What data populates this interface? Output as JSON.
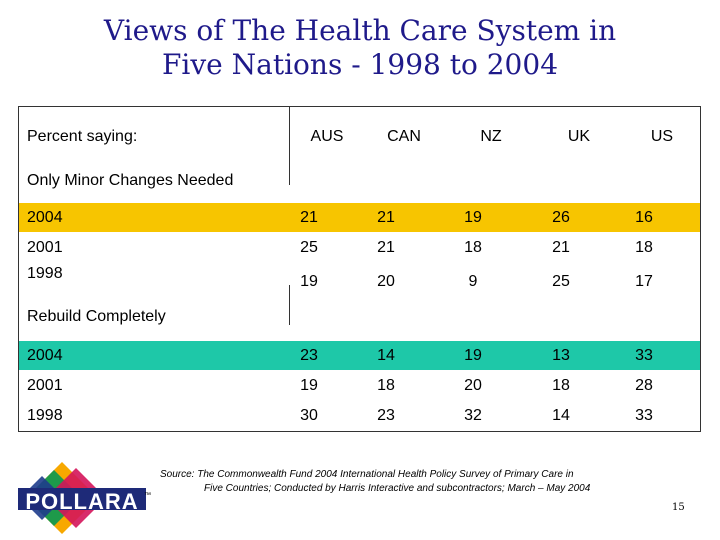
{
  "title": {
    "line1": "Views of The Health Care System in",
    "line2": "Five Nations  - 1998 to 2004"
  },
  "table": {
    "header_label": "Percent saying:",
    "columns": [
      "AUS",
      "CAN",
      "NZ",
      "UK",
      "US"
    ],
    "groups": [
      {
        "label": "Only Minor Changes Needed",
        "highlight_color": "#f7c500",
        "rows": [
          {
            "year": "2004",
            "values": [
              "21",
              "21",
              "19",
              "26",
              "16"
            ]
          },
          {
            "year": "2001",
            "values": [
              "25",
              "21",
              "18",
              "21",
              "18"
            ]
          },
          {
            "year": "1998",
            "values": [
              "19",
              "20",
              "9",
              "25",
              "17"
            ]
          }
        ]
      },
      {
        "label": "Rebuild Completely",
        "highlight_color": "#1ec8a8",
        "rows": [
          {
            "year": "2004",
            "values": [
              "23",
              "14",
              "19",
              "13",
              "33"
            ]
          },
          {
            "year": "2001",
            "values": [
              "19",
              "18",
              "20",
              "18",
              "28"
            ]
          },
          {
            "year": "1998",
            "values": [
              "30",
              "23",
              "32",
              "14",
              "33"
            ]
          }
        ]
      }
    ]
  },
  "source": {
    "line1": "Source: The Commonwealth Fund 2004 International Health Policy Survey of Primary Care in",
    "line2": "Five Countries; Conducted by Harris Interactive and subcontractors; March – May 2004"
  },
  "logo": {
    "text": "POLLARA",
    "trademark": "™"
  },
  "page_number": "15"
}
